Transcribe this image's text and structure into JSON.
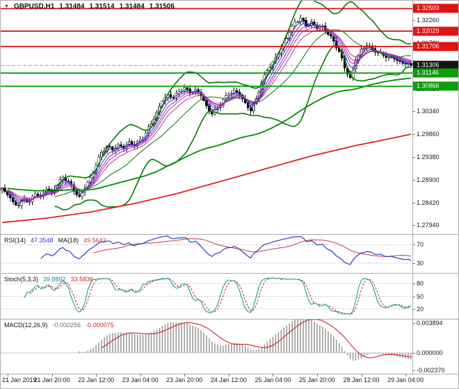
{
  "header": {
    "dropdown_glyph": "▼",
    "symbol_period": "GBPUSD,H1",
    "open": "1.31484",
    "high": "1.31514",
    "low": "1.31484",
    "close": "1.31506"
  },
  "chart_data": [
    {
      "type": "candlestick",
      "title": "GBPUSD,H1",
      "price_range": [
        1.27755,
        1.3267
      ],
      "y_tick_labels": [
        "1.32260",
        "1.31780",
        "1.31300",
        "1.30820",
        "1.30340",
        "1.29860",
        "1.29380",
        "1.28900",
        "1.28420",
        "1.27940"
      ],
      "x_tick_labels": [
        "21 Jan 2019",
        "21 Jan 20:00",
        "22 Jan 12:00",
        "23 Jan 04:00",
        "23 Jan 20:00",
        "24 Jan 12:00",
        "25 Jan 04:00",
        "25 Jan 20:00",
        "28 Jan 12:00",
        "29 Jan 04:00"
      ],
      "x_tick_bar_indices": [
        2,
        18,
        34,
        50,
        66,
        82,
        98,
        114,
        130,
        146
      ],
      "density_multiplier": 2,
      "sampled_closes_2h": [
        1.2872,
        1.2858,
        1.2843,
        1.2836,
        1.285,
        1.2844,
        1.286,
        1.2856,
        1.287,
        1.2864,
        1.2878,
        1.2895,
        1.2886,
        1.2866,
        1.2855,
        1.2872,
        1.2895,
        1.292,
        1.2948,
        1.296,
        1.2952,
        1.2964,
        1.2956,
        1.297,
        1.2962,
        1.2974,
        1.2988,
        1.3008,
        1.3032,
        1.3055,
        1.307,
        1.3062,
        1.3076,
        1.3084,
        1.3072,
        1.308,
        1.3066,
        1.3046,
        1.3028,
        1.3042,
        1.3058,
        1.307,
        1.3078,
        1.3068,
        1.3052,
        1.3035,
        1.306,
        1.3095,
        1.312,
        1.3138,
        1.3156,
        1.3178,
        1.32,
        1.3222,
        1.323,
        1.3214,
        1.3222,
        1.3208,
        1.3214,
        1.3196,
        1.3182,
        1.316,
        1.3125,
        1.3105,
        1.314,
        1.3165,
        1.3172,
        1.3166,
        1.3158,
        1.3152,
        1.3148,
        1.3144,
        1.3139,
        1.3134,
        1.31306
      ],
      "current_bar": {
        "open": 1.31484,
        "high": 1.31514,
        "low": 1.31484,
        "close": 1.31506
      },
      "horizontal_levels": [
        {
          "label": "1.32503",
          "price": 1.32503,
          "line_color": "#e11212",
          "badge_color": "#e11212",
          "style": "solid",
          "kind": "resistance-line"
        },
        {
          "label": "1.32029",
          "price": 1.32029,
          "line_color": "#e11212",
          "badge_color": "#e11212",
          "style": "solid",
          "kind": "resistance-line"
        },
        {
          "label": "1.31706",
          "price": 1.31706,
          "line_color": "#e11212",
          "badge_color": "#e11212",
          "style": "solid",
          "kind": "resistance-line"
        },
        {
          "label": "1.31306",
          "price": 1.31306,
          "line_color": "#9c9c9c",
          "badge_color": "#161616",
          "style": "dashed",
          "kind": "bid-price"
        },
        {
          "label": "1.31146",
          "price": 1.31146,
          "line_color": "#0a9e0a",
          "badge_color": "#0a9e0a",
          "style": "solid",
          "kind": "support-line"
        },
        {
          "label": "1.30866",
          "price": 1.30866,
          "line_color": "#0a9e0a",
          "badge_color": "#0a9e0a",
          "style": "solid",
          "kind": "support-line"
        }
      ],
      "overlays": {
        "bollinger": {
          "period": 20,
          "deviation": 2,
          "color": "#007800"
        },
        "ma_fan": {
          "periods": [
            3,
            5,
            7,
            9,
            12
          ],
          "colors": [
            "#2e2ecb",
            "#5a2ecb",
            "#8a2ec0",
            "#b02eb0",
            "#cb2e96"
          ]
        },
        "slow_ma_green": {
          "period": 100,
          "color": "#008c00"
        },
        "slow_ma_red": {
          "color": "#e02020",
          "keyframes": [
            [
              0,
              1.28
            ],
            [
              16,
              1.2809
            ],
            [
              32,
              1.2822
            ],
            [
              48,
              1.284
            ],
            [
              64,
              1.2862
            ],
            [
              80,
              1.2888
            ],
            [
              96,
              1.2914
            ],
            [
              112,
              1.294
            ],
            [
              128,
              1.2962
            ],
            [
              140,
              1.2976
            ],
            [
              148,
              1.2986
            ]
          ]
        }
      },
      "candle_colors": {
        "up_fill": "#ffffff",
        "down_fill": "#000000",
        "outline": "#000000"
      }
    },
    {
      "type": "line",
      "name": "RSI",
      "label": "RSI(14)",
      "value": "47.3548",
      "ma_label": "MA(18)",
      "ma_value": "49.5642",
      "levels": [
        70,
        30
      ],
      "range": [
        8,
        92
      ],
      "colors": {
        "main": "#2e3bbf",
        "ma": "#c23a3a",
        "level": "#c0c0c0"
      }
    },
    {
      "type": "line",
      "name": "Stochastic",
      "label": "Stoch(5,3,3)",
      "value": "39.8892",
      "signal_value": "33.5836",
      "params": [
        5,
        3,
        3
      ],
      "levels": [
        80,
        50,
        20
      ],
      "range": [
        0,
        100
      ],
      "colors": {
        "main": "#1fa8a8",
        "signal": "#d02020",
        "level": "#c0c0c0"
      }
    },
    {
      "type": "histogram+line",
      "name": "MACD",
      "label": "MACD(12,26,9)",
      "value": "-0.000256",
      "signal_value": "-0.000075",
      "params": [
        12,
        26,
        9
      ],
      "axis_labels": [
        "0.003894",
        "0.000000",
        "-0.002370"
      ],
      "range": [
        -0.0025,
        0.004
      ],
      "colors": {
        "histogram": "#9b9b9b",
        "signal": "#d02020",
        "zero": "#cfcfcf"
      }
    }
  ]
}
